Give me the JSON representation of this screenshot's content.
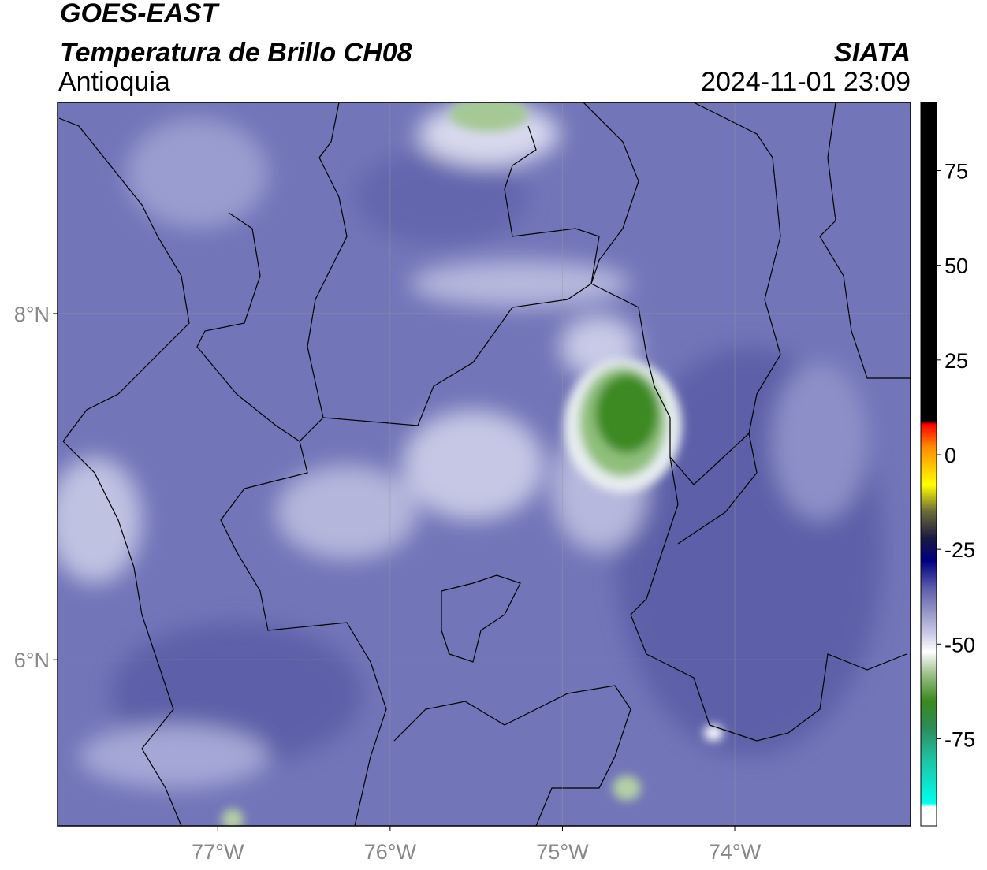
{
  "title": "GOES-EAST",
  "subtitle": "Temperatura de Brillo CH08",
  "region": "Antioquia",
  "source": "SIATA",
  "timestamp": "2024-11-01 23:09",
  "map": {
    "xlim": [
      -77.93,
      -72.98
    ],
    "ylim": [
      5.04,
      9.22
    ],
    "xticks": [
      {
        "value": -77,
        "label": "77°W"
      },
      {
        "value": -76,
        "label": "76°W"
      },
      {
        "value": -75,
        "label": "75°W"
      },
      {
        "value": -74,
        "label": "74°W"
      }
    ],
    "yticks": [
      {
        "value": 8,
        "label": "8°N"
      },
      {
        "value": 6,
        "label": "6°N"
      }
    ],
    "grid": true
  },
  "colorbar": {
    "lim": [
      -98,
      93
    ],
    "ticks": [
      75,
      50,
      25,
      0,
      -25,
      -50,
      -75
    ],
    "stops": [
      {
        "value": 93,
        "color": "#000000"
      },
      {
        "value": 9,
        "color": "#000000"
      },
      {
        "value": 8,
        "color": "#ff0000"
      },
      {
        "value": 2,
        "color": "#ff8c00"
      },
      {
        "value": -8,
        "color": "#ffff00"
      },
      {
        "value": -15,
        "color": "#6b6b3a"
      },
      {
        "value": -22,
        "color": "#1a1a40"
      },
      {
        "value": -28,
        "color": "#000080"
      },
      {
        "value": -35,
        "color": "#5a5aa8"
      },
      {
        "value": -47,
        "color": "#c8c8e6"
      },
      {
        "value": -52,
        "color": "#ffffff"
      },
      {
        "value": -58,
        "color": "#9cbf8a"
      },
      {
        "value": -65,
        "color": "#3a8a1e"
      },
      {
        "value": -72,
        "color": "#2e8b57"
      },
      {
        "value": -80,
        "color": "#20c0a0"
      },
      {
        "value": -92,
        "color": "#00ffee"
      },
      {
        "value": -93,
        "color": "#ffffff"
      },
      {
        "value": -98,
        "color": "#ffffff"
      }
    ]
  }
}
